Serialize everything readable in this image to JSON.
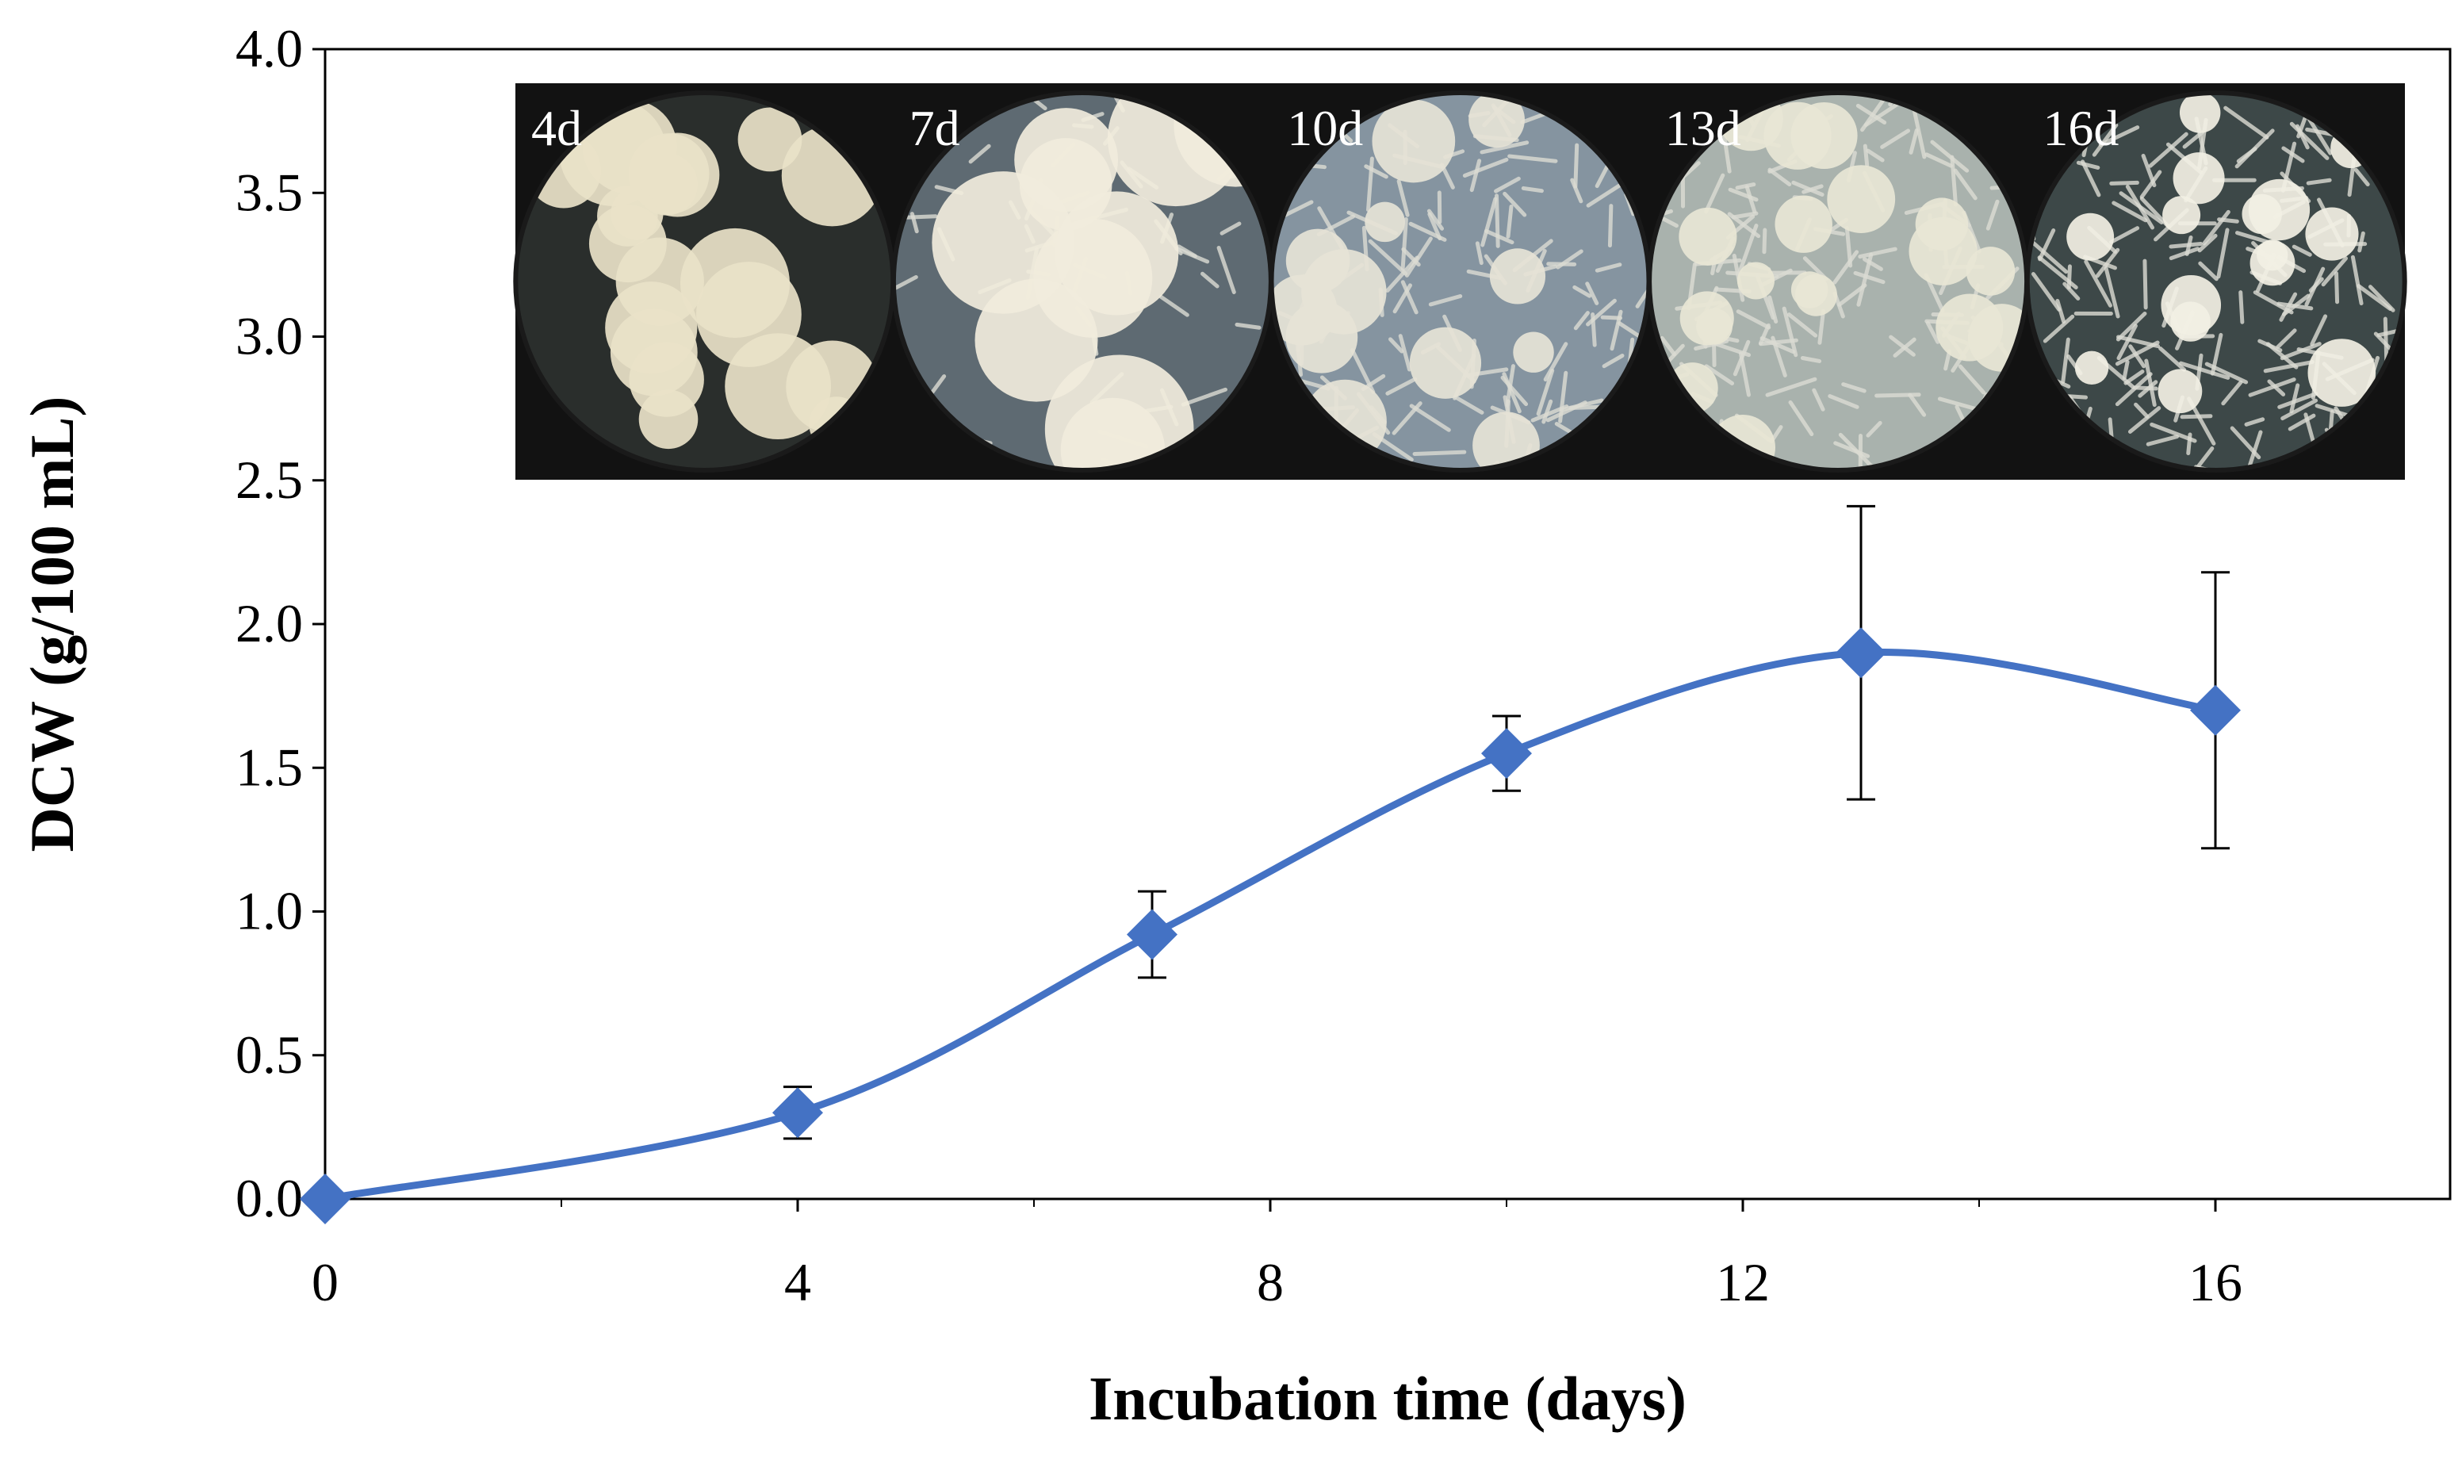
{
  "chart_data": {
    "type": "scatter",
    "title": "",
    "xlabel": "Incubation time (days)",
    "ylabel": "DCW (g/100 mL)",
    "xlim": [
      0,
      18
    ],
    "ylim": [
      0.0,
      4.0
    ],
    "x_ticks": [
      "0",
      "4",
      "8",
      "12",
      "16"
    ],
    "x_tick_values": [
      0,
      4,
      8,
      12,
      16
    ],
    "y_ticks": [
      "0.0",
      "0.5",
      "1.0",
      "1.5",
      "2.0",
      "2.5",
      "3.0",
      "3.5",
      "4.0"
    ],
    "y_tick_values": [
      0.0,
      0.5,
      1.0,
      1.5,
      2.0,
      2.5,
      3.0,
      3.5,
      4.0
    ],
    "grid": false,
    "smooth_line": true,
    "marker": "diamond",
    "series": [
      {
        "color": "#4472C4",
        "x": [
          0,
          4,
          7,
          10,
          13,
          16
        ],
        "y": [
          0.0,
          0.3,
          0.92,
          1.55,
          1.9,
          1.7
        ],
        "error": [
          0.0,
          0.09,
          0.15,
          0.13,
          0.51,
          0.48
        ]
      }
    ],
    "inset_photos": {
      "labels": [
        "4d",
        "7d",
        "10d",
        "13d",
        "16d"
      ],
      "style": [
        "scattered-round-colonies",
        "fluffy-colonies",
        "dense-filamentous",
        "dense-pale-mycelium",
        "dense-dark-mycelium"
      ]
    }
  }
}
